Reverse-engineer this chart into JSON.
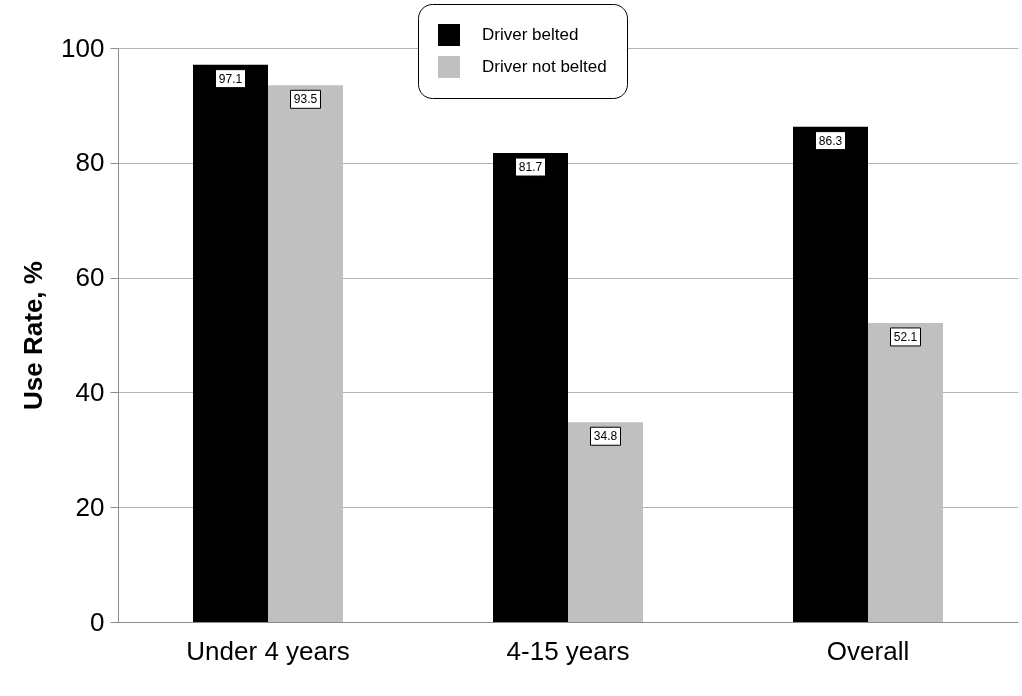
{
  "chart_data": {
    "type": "bar",
    "ylabel": "Use Rate, %",
    "categories": [
      "Under 4 years",
      "4-15 years",
      "Overall"
    ],
    "series": [
      {
        "name": "Driver belted",
        "color": "#000000",
        "values": [
          97.1,
          81.7,
          86.3
        ]
      },
      {
        "name": "Driver not belted",
        "color": "#c0c0c0",
        "values": [
          93.5,
          34.8,
          52.1
        ]
      }
    ],
    "ylim": [
      0,
      100
    ],
    "yticks": [
      0,
      20,
      40,
      60,
      80,
      100
    ],
    "grid": "y",
    "legend": "top",
    "data_labels": true
  }
}
